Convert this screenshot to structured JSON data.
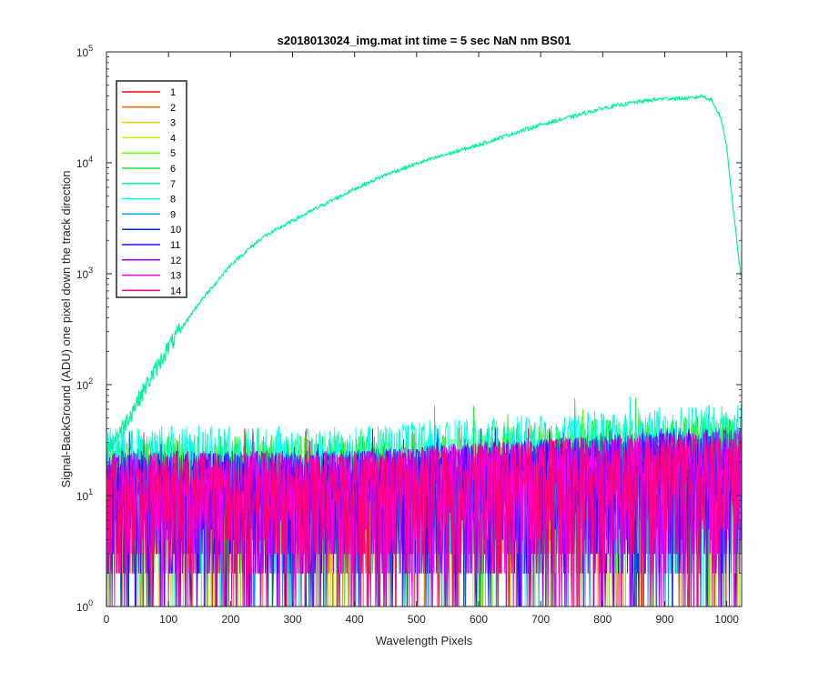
{
  "chart_data": {
    "type": "line",
    "title": "s2018013024_img.mat int time = 5 sec  NaN nm BS01",
    "xlabel": "Wavelength Pixels",
    "ylabel": "Signal-BackGround (ADU) one pixel down the track direction",
    "x_scale": "linear",
    "y_scale": "log",
    "xlim": [
      0,
      1024
    ],
    "ylim": [
      1,
      100000
    ],
    "x_ticks": [
      0,
      100,
      200,
      300,
      400,
      500,
      600,
      700,
      800,
      900,
      1000
    ],
    "y_ticks": [
      {
        "value": 1,
        "base": "10",
        "exp": "0"
      },
      {
        "value": 10,
        "base": "10",
        "exp": "1"
      },
      {
        "value": 100,
        "base": "10",
        "exp": "2"
      },
      {
        "value": 1000,
        "base": "10",
        "exp": "3"
      },
      {
        "value": 10000,
        "base": "10",
        "exp": "4"
      },
      {
        "value": 100000,
        "base": "10",
        "exp": "5"
      }
    ],
    "grid": false,
    "legend_position": "top-left",
    "series": [
      {
        "name": "1",
        "color": "#ff0000",
        "level": 12,
        "spread": 8,
        "peak": 40
      },
      {
        "name": "2",
        "color": "#ff6a00",
        "level": 12,
        "spread": 8,
        "peak": 40
      },
      {
        "name": "3",
        "color": "#ffc400",
        "level": 12,
        "spread": 8,
        "peak": 40
      },
      {
        "name": "4",
        "color": "#c8f000",
        "level": 13,
        "spread": 8,
        "peak": 45
      },
      {
        "name": "5",
        "color": "#66ff00",
        "level": 15,
        "spread": 10,
        "peak": 60
      },
      {
        "name": "6",
        "color": "#14ef2b",
        "level": 18,
        "spread": 12,
        "peak": 75
      },
      {
        "name": "7",
        "color": "#00f59a",
        "profile": [
          {
            "x": 0,
            "y": 25
          },
          {
            "x": 30,
            "y": 45
          },
          {
            "x": 60,
            "y": 90
          },
          {
            "x": 100,
            "y": 220
          },
          {
            "x": 150,
            "y": 550
          },
          {
            "x": 200,
            "y": 1200
          },
          {
            "x": 250,
            "y": 2100
          },
          {
            "x": 300,
            "y": 3000
          },
          {
            "x": 350,
            "y": 4200
          },
          {
            "x": 400,
            "y": 5800
          },
          {
            "x": 450,
            "y": 7800
          },
          {
            "x": 500,
            "y": 9800
          },
          {
            "x": 550,
            "y": 12000
          },
          {
            "x": 600,
            "y": 14500
          },
          {
            "x": 650,
            "y": 18000
          },
          {
            "x": 700,
            "y": 22000
          },
          {
            "x": 750,
            "y": 26000
          },
          {
            "x": 800,
            "y": 31000
          },
          {
            "x": 850,
            "y": 35000
          },
          {
            "x": 900,
            "y": 38000
          },
          {
            "x": 940,
            "y": 38000
          },
          {
            "x": 960,
            "y": 40000
          },
          {
            "x": 975,
            "y": 37000
          },
          {
            "x": 990,
            "y": 26000
          },
          {
            "x": 1000,
            "y": 14000
          },
          {
            "x": 1010,
            "y": 4000
          },
          {
            "x": 1023,
            "y": 900
          }
        ]
      },
      {
        "name": "8",
        "color": "#00ffe1",
        "level": 22,
        "spread": 14,
        "peak": 100
      },
      {
        "name": "9",
        "color": "#0096ff",
        "level": 13,
        "spread": 9,
        "peak": 40
      },
      {
        "name": "10",
        "color": "#0032ff",
        "level": 12,
        "spread": 9,
        "peak": 40
      },
      {
        "name": "11",
        "color": "#3c00ff",
        "level": 12,
        "spread": 9,
        "peak": 40
      },
      {
        "name": "12",
        "color": "#a000ff",
        "level": 12,
        "spread": 9,
        "peak": 40
      },
      {
        "name": "13",
        "color": "#ff00e6",
        "level": 12,
        "spread": 9,
        "peak": 40
      },
      {
        "name": "14",
        "color": "#ff0078",
        "level": 12,
        "spread": 9,
        "peak": 40
      }
    ]
  }
}
